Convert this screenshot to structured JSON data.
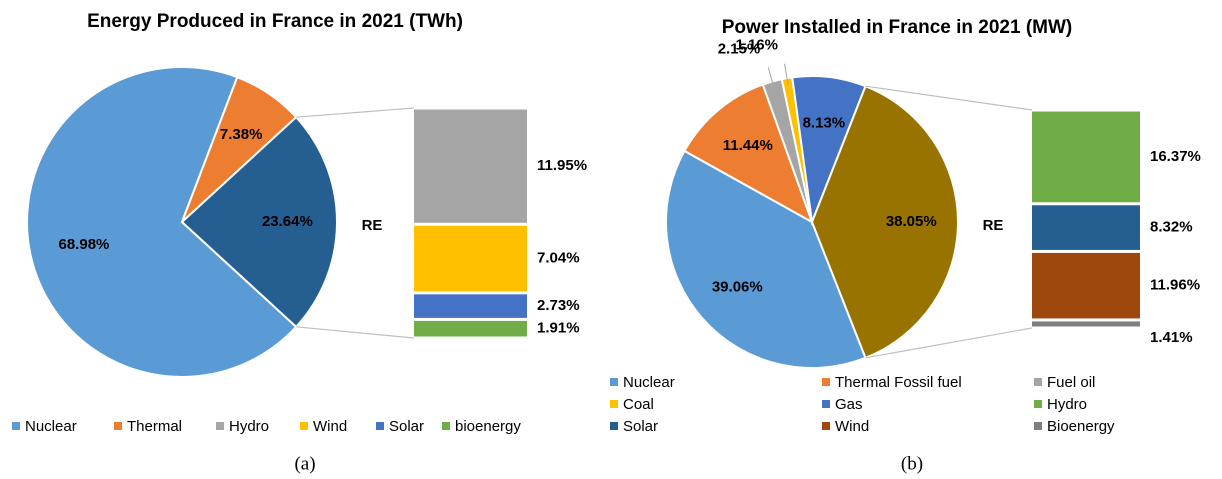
{
  "chart_data": [
    {
      "type": "pie",
      "title": "Energy Produced in France in 2021 (TWh)",
      "caption": "(a)",
      "categories": [
        "Nuclear",
        "Thermal",
        "RE"
      ],
      "values": [
        68.98,
        7.38,
        23.64
      ],
      "value_labels": [
        "68.98%",
        "7.38%",
        "23.64%"
      ],
      "colors": [
        "#5b9bd5",
        "#ed7d31",
        "#255e91"
      ],
      "bar": {
        "categories": [
          "Hydro",
          "Wind",
          "Solar",
          "bioenergy"
        ],
        "values": [
          11.95,
          7.04,
          2.73,
          1.91
        ],
        "value_labels": [
          "11.95%",
          "7.04%",
          "2.73%",
          "1.91%"
        ],
        "colors": [
          "#a5a5a5",
          "#ffc000",
          "#4472c4",
          "#70ad47"
        ]
      }
    },
    {
      "type": "pie",
      "title": "Power Installed in France in 2021 (MW)",
      "caption": "(b)",
      "categories": [
        "Nuclear",
        "Thermal Fossil fuel",
        "Fuel oil",
        "Coal",
        "Gas",
        "RE"
      ],
      "values": [
        39.06,
        11.44,
        2.15,
        1.16,
        8.13,
        38.05
      ],
      "value_labels": [
        "39.06%",
        "11.44%",
        "2.15%",
        "1.16%",
        "8.13%",
        "38.05%"
      ],
      "colors": [
        "#5b9bd5",
        "#ed7d31",
        "#a5a5a5",
        "#ffc000",
        "#4472c4",
        "#997300"
      ],
      "bar": {
        "categories": [
          "Hydro",
          "Solar",
          "Wind",
          "Bioenergy"
        ],
        "values": [
          16.37,
          8.32,
          11.96,
          1.41
        ],
        "value_labels": [
          "16.37%",
          "8.32%",
          "11.96%",
          "1.41%"
        ],
        "colors": [
          "#70ad47",
          "#255e91",
          "#9e480e",
          "#7f7f7f"
        ]
      }
    }
  ]
}
